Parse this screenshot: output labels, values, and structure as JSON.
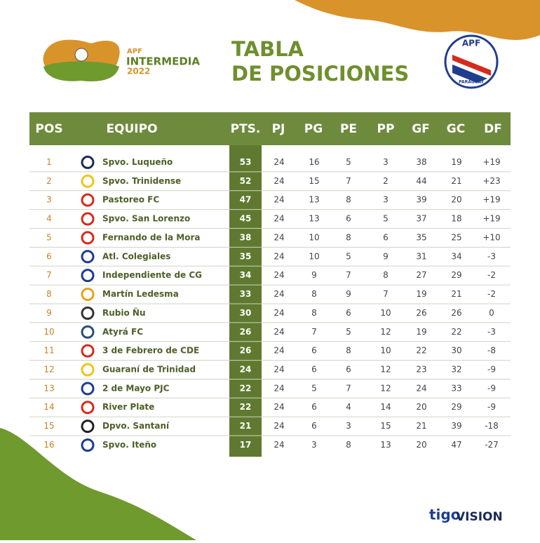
{
  "header": {
    "logo": {
      "top": "APF",
      "name": "INTERMEDIA",
      "year": "2022"
    },
    "title": [
      "TABLA",
      "DE POSICIONES"
    ],
    "badge": {
      "top": "APF",
      "bottom": "PARAGUAY"
    }
  },
  "table": {
    "columns": [
      "POS",
      "EQUIPO",
      "PTS.",
      "PJ",
      "PG",
      "PE",
      "PP",
      "GF",
      "GC",
      "DF"
    ],
    "rows": [
      [
        1,
        "Spvo. Luqueño",
        53,
        24,
        16,
        5,
        3,
        38,
        19,
        "+19"
      ],
      [
        2,
        "Spvo. Trinidense",
        52,
        24,
        15,
        7,
        2,
        44,
        21,
        "+23"
      ],
      [
        3,
        "Pastoreo FC",
        47,
        24,
        13,
        8,
        3,
        39,
        20,
        "+19"
      ],
      [
        4,
        "Spvo. San Lorenzo",
        45,
        24,
        13,
        6,
        5,
        37,
        18,
        "+19"
      ],
      [
        5,
        "Fernando de la Mora",
        38,
        24,
        10,
        8,
        6,
        35,
        25,
        "+10"
      ],
      [
        6,
        "Atl. Colegiales",
        35,
        24,
        10,
        5,
        9,
        31,
        34,
        "-3"
      ],
      [
        7,
        "Independiente de CG",
        34,
        24,
        9,
        7,
        8,
        27,
        29,
        "-2"
      ],
      [
        8,
        "Martín Ledesma",
        33,
        24,
        8,
        9,
        7,
        19,
        21,
        "-2"
      ],
      [
        9,
        "Rubio Ñu",
        30,
        24,
        8,
        6,
        10,
        26,
        26,
        "0"
      ],
      [
        10,
        "Atyrá FC",
        26,
        24,
        7,
        5,
        12,
        19,
        22,
        "-3"
      ],
      [
        11,
        "3 de Febrero de CDE",
        26,
        24,
        6,
        8,
        10,
        22,
        30,
        "-8"
      ],
      [
        12,
        "Guaraní de Trinidad",
        24,
        24,
        6,
        6,
        12,
        23,
        32,
        "-9"
      ],
      [
        13,
        "2 de Mayo PJC",
        22,
        24,
        5,
        7,
        12,
        24,
        33,
        "-9"
      ],
      [
        14,
        "River Plate",
        22,
        24,
        6,
        4,
        14,
        20,
        29,
        "-9"
      ],
      [
        15,
        "Dpvo. Santaní",
        21,
        24,
        6,
        3,
        15,
        21,
        39,
        "-18"
      ],
      [
        16,
        "Spvo. Iteño",
        17,
        24,
        3,
        8,
        13,
        20,
        47,
        "-27"
      ]
    ]
  },
  "sponsors": [
    "tigo",
    "VISION"
  ]
}
